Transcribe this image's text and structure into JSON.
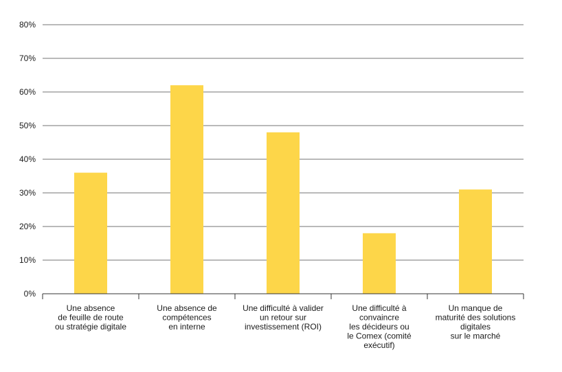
{
  "colors": {
    "bar": "#FDD649",
    "grid": "#444444",
    "text": "#1a1a1a"
  },
  "chart_data": {
    "type": "bar",
    "title": "",
    "xlabel": "",
    "ylabel": "",
    "ylim": [
      0,
      80
    ],
    "yticks": [
      0,
      10,
      20,
      30,
      40,
      50,
      60,
      70,
      80
    ],
    "ytick_labels": [
      "0%",
      "10%",
      "20%",
      "30%",
      "40%",
      "50%",
      "60%",
      "70%",
      "80%"
    ],
    "grid": true,
    "categories": [
      [
        "Une absence",
        "de feuille de route",
        "ou stratégie digitale"
      ],
      [
        "Une absence de",
        "compétences",
        "en interne"
      ],
      [
        "Une difficulté à valider",
        "un retour sur",
        "investissement (ROI)"
      ],
      [
        "Une difficulté à",
        "convaincre",
        "les décideurs ou",
        "le Comex (comité",
        "exécutif)"
      ],
      [
        "Un manque de",
        "maturité des solutions",
        "digitales",
        "sur le marché"
      ]
    ],
    "values": [
      36,
      62,
      48,
      18,
      31
    ]
  }
}
